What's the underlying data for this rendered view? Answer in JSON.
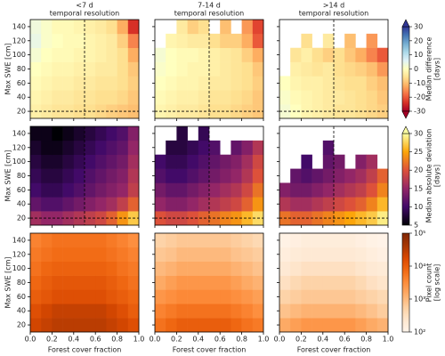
{
  "chart_data": {
    "type": "heatmap",
    "xlabel": "Forest cover fraction",
    "ylabel": "Max SWE [cm]",
    "xlim": [
      0,
      1
    ],
    "ylim": [
      10,
      150
    ],
    "xticks": [
      {
        "value": 0,
        "label": "0.0"
      },
      0.2,
      0.4,
      0.6,
      0.8,
      {
        "value": 1,
        "label": "1.0"
      }
    ],
    "yticks": [
      20,
      40,
      60,
      80,
      100,
      120,
      140
    ],
    "x_edges": [
      0,
      0.1,
      0.2,
      0.3,
      0.4,
      0.5,
      0.6,
      0.7,
      0.8,
      0.9,
      1
    ],
    "y_edges": [
      10,
      30,
      50,
      70,
      90,
      110,
      130,
      150
    ],
    "columns": [
      {
        "title": "<7 d",
        "subtitle": "temporal resolution"
      },
      {
        "title": "7-14 d",
        "subtitle": "temporal resolution"
      },
      {
        "title": ">14 d",
        "subtitle": "temporal resolution"
      }
    ],
    "rows": [
      {
        "ref_x": 0.5,
        "ref_y": 20,
        "colorbar": {
          "label": [
            "Median difference",
            "[days]"
          ],
          "lim": [
            -30,
            30
          ],
          "ticks": [
            -30,
            -20,
            -10,
            0,
            10,
            20,
            30
          ],
          "scale": "linear",
          "cmap": "RdYlBu",
          "extend": "both"
        },
        "panels": [
          {
            "values": [
              [
                -3,
                -4,
                -5,
                -5,
                -6,
                -6,
                -7,
                -8,
                -9,
                -10
              ],
              [
                -2,
                -3,
                -4,
                -4,
                -5,
                -5,
                -6,
                -6,
                -7,
                -9
              ],
              [
                -1,
                -2,
                -3,
                -3,
                -4,
                -4,
                -5,
                -5,
                -6,
                -8
              ],
              [
                0,
                -1,
                -2,
                -2,
                -3,
                -3,
                -4,
                -4,
                -6,
                -9
              ],
              [
                2,
                0,
                -1,
                -1,
                -2,
                -2,
                -3,
                -4,
                -6,
                -12
              ],
              [
                4,
                1,
                0,
                -1,
                -1,
                -2,
                -3,
                -4,
                -8,
                -16
              ],
              [
                3,
                1,
                -1,
                -1,
                -2,
                -3,
                -4,
                -6,
                -12,
                -24
              ]
            ]
          },
          {
            "values": [
              [
                -2,
                -3,
                -4,
                -4,
                -5,
                -6,
                -6,
                -7,
                -8,
                -9
              ],
              [
                -1,
                -2,
                -3,
                -3,
                -4,
                -5,
                -5,
                -6,
                -7,
                -9
              ],
              [
                0,
                -1,
                -2,
                -2,
                -3,
                -4,
                -4,
                -5,
                -6,
                -8
              ],
              [
                1,
                0,
                -1,
                -2,
                -2,
                -3,
                -4,
                -5,
                -6,
                -9
              ],
              [
                2,
                0,
                -1,
                -1,
                -2,
                -3,
                -4,
                -5,
                -8,
                -12
              ],
              [
                null,
                -2,
                -3,
                -4,
                -4,
                -6,
                -8,
                -8,
                -12,
                -20
              ],
              [
                null,
                null,
                -4,
                -8,
                -6,
                null,
                -10,
                null,
                -14,
                -22
              ]
            ]
          },
          {
            "values": [
              [
                2,
                0,
                -2,
                -3,
                -4,
                -5,
                -5,
                -6,
                -7,
                -8
              ],
              [
                1,
                -1,
                -2,
                -3,
                -4,
                -4,
                -5,
                -6,
                -7,
                -9
              ],
              [
                0,
                -2,
                -3,
                -3,
                -4,
                -5,
                -6,
                -6,
                -8,
                -10
              ],
              [
                null,
                -3,
                -4,
                -5,
                -4,
                -6,
                -7,
                -8,
                -10,
                -14
              ],
              [
                null,
                -5,
                -3,
                -6,
                -8,
                -6,
                -9,
                -12,
                -16,
                -20
              ],
              [
                null,
                null,
                -6,
                null,
                -4,
                null,
                -10,
                null,
                -14,
                null
              ],
              [
                null,
                null,
                null,
                null,
                null,
                null,
                null,
                null,
                null,
                null
              ]
            ]
          }
        ]
      },
      {
        "ref_x": 0.5,
        "ref_y": 20,
        "colorbar": {
          "label": [
            "Median absolute deviation",
            "[days]"
          ],
          "lim": [
            5,
            30
          ],
          "ticks": [
            5,
            10,
            15,
            20,
            25,
            30
          ],
          "scale": "linear",
          "cmap": "inferno",
          "extend": "max"
        },
        "panels": [
          {
            "values": [
              [
                16,
                15,
                15,
                16,
                17,
                18,
                19,
                21,
                24,
                27
              ],
              [
                12,
                11,
                11,
                12,
                13,
                14,
                15,
                16,
                18,
                21
              ],
              [
                10,
                9,
                9,
                10,
                11,
                12,
                13,
                14,
                15,
                18
              ],
              [
                9,
                8,
                8,
                9,
                10,
                11,
                12,
                13,
                14,
                17
              ],
              [
                8,
                7,
                7,
                8,
                9,
                10,
                11,
                12,
                13,
                16
              ],
              [
                7,
                6,
                6,
                7,
                8,
                9,
                10,
                11,
                12,
                15
              ],
              [
                6,
                6,
                5,
                6,
                7,
                8,
                9,
                10,
                11,
                14
              ]
            ]
          },
          {
            "values": [
              [
                20,
                19,
                19,
                20,
                21,
                22,
                23,
                24,
                26,
                28
              ],
              [
                15,
                14,
                14,
                15,
                16,
                17,
                18,
                19,
                21,
                24
              ],
              [
                13,
                12,
                12,
                13,
                14,
                15,
                16,
                17,
                19,
                22
              ],
              [
                11,
                10,
                10,
                11,
                12,
                13,
                14,
                15,
                17,
                20
              ],
              [
                10,
                9,
                9,
                10,
                11,
                12,
                13,
                14,
                16,
                19
              ],
              [
                null,
                8,
                8,
                9,
                10,
                11,
                null,
                12,
                14,
                17
              ],
              [
                null,
                null,
                8,
                null,
                9,
                null,
                null,
                null,
                null,
                null
              ]
            ]
          },
          {
            "values": [
              [
                22,
                21,
                21,
                22,
                23,
                24,
                25,
                26,
                27,
                29
              ],
              [
                17,
                16,
                16,
                17,
                18,
                19,
                20,
                21,
                23,
                26
              ],
              [
                14,
                13,
                13,
                14,
                15,
                16,
                17,
                18,
                20,
                23
              ],
              [
                null,
                12,
                11,
                12,
                13,
                14,
                15,
                16,
                18,
                21
              ],
              [
                null,
                null,
                10,
                null,
                12,
                13,
                null,
                14,
                16,
                null
              ],
              [
                null,
                null,
                null,
                null,
                11,
                null,
                null,
                null,
                null,
                null
              ],
              [
                null,
                null,
                null,
                null,
                null,
                null,
                null,
                null,
                null,
                null
              ]
            ]
          }
        ]
      },
      {
        "colorbar": {
          "label": [
            "Pixel count",
            "[log scale]"
          ],
          "lim": [
            100,
            100000
          ],
          "ticks": [
            {
              "value": 100,
              "label": "10²"
            },
            {
              "value": 1000,
              "label": "10³"
            },
            {
              "value": 10000,
              "label": "10⁴"
            },
            {
              "value": 100000,
              "label": "10⁵"
            }
          ],
          "scale": "log",
          "cmap": "Oranges",
          "extend": "none"
        },
        "panels": [
          {
            "values": [
              [
                20000,
                25000,
                30000,
                30000,
                30000,
                30000,
                30000,
                25000,
                20000,
                15000
              ],
              [
                15000,
                20000,
                25000,
                25000,
                25000,
                25000,
                25000,
                20000,
                15000,
                10000
              ],
              [
                10000,
                12000,
                15000,
                15000,
                15000,
                15000,
                15000,
                12000,
                10000,
                8000
              ],
              [
                8000,
                10000,
                12000,
                12000,
                12000,
                12000,
                12000,
                10000,
                8000,
                6000
              ],
              [
                6000,
                8000,
                9000,
                9000,
                9000,
                9000,
                9000,
                8000,
                6000,
                5000
              ],
              [
                5000,
                6000,
                7000,
                7000,
                7000,
                7000,
                7000,
                6000,
                5000,
                4000
              ],
              [
                4000,
                5000,
                6000,
                6000,
                6000,
                6000,
                6000,
                5000,
                4000,
                3000
              ]
            ]
          },
          {
            "values": [
              [
                6000,
                8000,
                10000,
                10000,
                10000,
                10000,
                10000,
                8000,
                6000,
                5000
              ],
              [
                4000,
                5000,
                6000,
                6000,
                6000,
                6000,
                6000,
                5000,
                4000,
                3000
              ],
              [
                2500,
                3000,
                3500,
                3500,
                3500,
                3500,
                3500,
                3000,
                2500,
                2000
              ],
              [
                1500,
                2000,
                2500,
                2500,
                2500,
                2500,
                2500,
                2000,
                1500,
                1200
              ],
              [
                1000,
                1200,
                1500,
                1500,
                1500,
                1500,
                1500,
                1200,
                1000,
                800
              ],
              [
                700,
                800,
                1000,
                1000,
                1000,
                1000,
                1000,
                800,
                700,
                600
              ],
              [
                500,
                600,
                700,
                700,
                700,
                700,
                700,
                600,
                500,
                400
              ]
            ]
          },
          {
            "values": [
              [
                1500,
                2000,
                2500,
                2500,
                2500,
                2500,
                2500,
                2000,
                1500,
                1200
              ],
              [
                800,
                1000,
                1200,
                1200,
                1200,
                1200,
                1200,
                1000,
                800,
                600
              ],
              [
                500,
                600,
                700,
                700,
                700,
                700,
                700,
                600,
                500,
                400
              ],
              [
                300,
                400,
                500,
                500,
                500,
                500,
                500,
                400,
                300,
                250
              ],
              [
                200,
                250,
                300,
                300,
                300,
                300,
                300,
                250,
                200,
                180
              ],
              [
                150,
                180,
                200,
                200,
                200,
                200,
                200,
                180,
                150,
                130
              ],
              [
                120,
                140,
                160,
                160,
                160,
                160,
                160,
                140,
                120,
                110
              ]
            ]
          }
        ]
      }
    ]
  }
}
